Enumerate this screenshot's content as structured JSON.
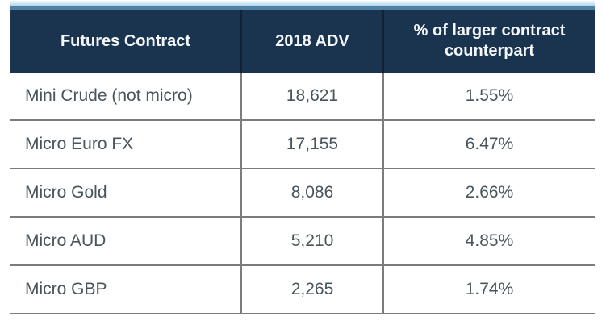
{
  "chart_data": {
    "type": "table",
    "title": "",
    "columns": [
      "Futures Contract",
      "2018 ADV",
      "% of larger contract counterpart"
    ],
    "rows": [
      [
        "Mini Crude (not micro)",
        "18,621",
        "1.55%"
      ],
      [
        "Micro Euro FX",
        "17,155",
        "6.47%"
      ],
      [
        "Micro Gold",
        "8,086",
        "2.66%"
      ],
      [
        "Micro AUD",
        "5,210",
        "4.85%"
      ],
      [
        "Micro GBP",
        "2,265",
        "1.74%"
      ]
    ],
    "numeric_values": {
      "adv_2018": [
        18621,
        17155,
        8086,
        5210,
        2265
      ],
      "pct_of_larger_contract": [
        1.55,
        6.47,
        2.66,
        4.85,
        1.74
      ]
    }
  },
  "colors": {
    "header_bg": "#1a3450",
    "header_text": "#f5f8fa",
    "accent_line": "#4e80a8",
    "accent_strip_light": "#a9cfe3",
    "row_border": "#7c7c7c",
    "body_text": "#4a545c",
    "background": "#ffffff"
  }
}
